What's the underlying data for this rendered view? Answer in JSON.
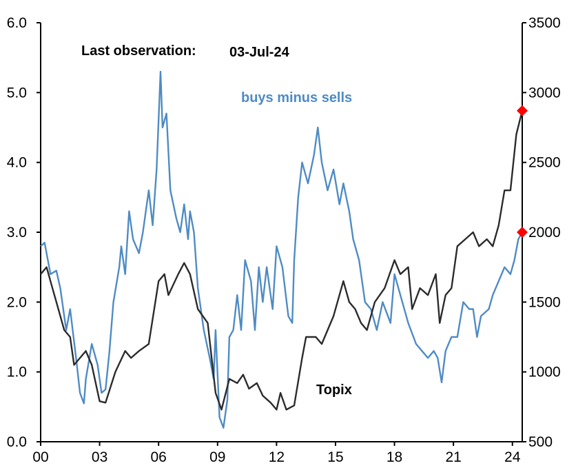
{
  "chart_data": {
    "type": "line",
    "title": "",
    "annotations": {
      "last_observation_label": "Last observation:",
      "last_observation_date": "03-Jul-24"
    },
    "x_axis": {
      "ticks": [
        "00",
        "03",
        "06",
        "09",
        "12",
        "15",
        "18",
        "21",
        "24"
      ],
      "tick_years": [
        2000,
        2003,
        2006,
        2009,
        2012,
        2015,
        2018,
        2021,
        2024
      ],
      "range": [
        2000,
        2024.5
      ]
    },
    "y_left": {
      "range": [
        0,
        6
      ],
      "ticks": [
        "0.0",
        "1.0",
        "2.0",
        "3.0",
        "4.0",
        "5.0",
        "6.0"
      ]
    },
    "y_right": {
      "range": [
        500,
        3500
      ],
      "ticks": [
        "500",
        "1000",
        "1500",
        "2000",
        "2500",
        "3000",
        "3500"
      ]
    },
    "grid": false,
    "legend": "none",
    "series": [
      {
        "name": "buys minus sells",
        "axis": "left",
        "color": "#4F8BC4",
        "x": [
          2000.0,
          2000.2,
          2000.5,
          2000.8,
          2001.0,
          2001.3,
          2001.5,
          2001.8,
          2002.0,
          2002.2,
          2002.3,
          2002.6,
          2002.9,
          2003.1,
          2003.3,
          2003.5,
          2003.7,
          2004.0,
          2004.1,
          2004.3,
          2004.5,
          2004.7,
          2005.0,
          2005.2,
          2005.5,
          2005.7,
          2005.9,
          2006.1,
          2006.2,
          2006.4,
          2006.6,
          2006.9,
          2007.1,
          2007.3,
          2007.5,
          2007.6,
          2007.8,
          2008.0,
          2008.3,
          2008.6,
          2008.8,
          2008.9,
          2009.1,
          2009.3,
          2009.5,
          2009.6,
          2009.8,
          2010.0,
          2010.2,
          2010.4,
          2010.7,
          2010.9,
          2011.1,
          2011.3,
          2011.5,
          2011.8,
          2012.0,
          2012.3,
          2012.6,
          2012.8,
          2012.9,
          2013.1,
          2013.3,
          2013.6,
          2013.9,
          2014.1,
          2014.3,
          2014.6,
          2014.9,
          2015.2,
          2015.4,
          2015.7,
          2015.9,
          2016.2,
          2016.5,
          2016.8,
          2017.1,
          2017.4,
          2017.8,
          2018.0,
          2018.3,
          2018.7,
          2019.1,
          2019.4,
          2019.7,
          2020.0,
          2020.2,
          2020.4,
          2020.6,
          2020.9,
          2021.2,
          2021.5,
          2021.8,
          2022.0,
          2022.2,
          2022.4,
          2022.8,
          2023.0,
          2023.3,
          2023.6,
          2023.9,
          2024.1,
          2024.3,
          2024.5
        ],
        "y": [
          2.8,
          2.85,
          2.4,
          2.45,
          2.2,
          1.6,
          1.9,
          1.2,
          0.7,
          0.55,
          0.9,
          1.4,
          1.1,
          0.7,
          0.75,
          1.3,
          2.0,
          2.5,
          2.8,
          2.4,
          3.3,
          2.9,
          2.7,
          3.0,
          3.6,
          3.1,
          3.9,
          5.3,
          4.5,
          4.7,
          3.6,
          3.2,
          3.0,
          3.4,
          2.9,
          3.3,
          3.0,
          2.2,
          1.6,
          1.2,
          0.9,
          1.6,
          0.35,
          0.2,
          0.6,
          1.5,
          1.6,
          2.1,
          1.6,
          2.6,
          2.3,
          1.6,
          2.5,
          2.0,
          2.5,
          1.9,
          2.8,
          2.5,
          1.8,
          1.7,
          2.6,
          3.5,
          4.0,
          3.7,
          4.1,
          4.5,
          4.0,
          3.6,
          3.9,
          3.4,
          3.7,
          3.3,
          2.9,
          2.6,
          2.0,
          1.9,
          1.6,
          2.0,
          1.7,
          2.4,
          2.1,
          1.7,
          1.4,
          1.3,
          1.2,
          1.3,
          1.2,
          0.85,
          1.3,
          1.5,
          1.5,
          2.0,
          1.9,
          1.9,
          1.5,
          1.8,
          1.9,
          2.1,
          2.3,
          2.5,
          2.4,
          2.6,
          2.9,
          3.0
        ],
        "last_value": 3.0
      },
      {
        "name": "Topix",
        "axis": "right",
        "color": "#2B2B2B",
        "x": [
          2000.0,
          2000.3,
          2000.6,
          2000.9,
          2001.2,
          2001.5,
          2001.7,
          2002.0,
          2002.3,
          2002.6,
          2003.0,
          2003.3,
          2003.8,
          2004.3,
          2004.6,
          2005.0,
          2005.5,
          2006.0,
          2006.3,
          2006.5,
          2007.0,
          2007.3,
          2007.6,
          2008.0,
          2008.5,
          2008.9,
          2009.2,
          2009.6,
          2010.0,
          2010.3,
          2010.6,
          2011.0,
          2011.3,
          2011.7,
          2012.0,
          2012.2,
          2012.5,
          2012.9,
          2013.3,
          2013.5,
          2014.0,
          2014.3,
          2014.9,
          2015.4,
          2015.7,
          2016.0,
          2016.3,
          2016.6,
          2017.0,
          2017.5,
          2018.0,
          2018.3,
          2018.7,
          2018.9,
          2019.3,
          2019.7,
          2020.1,
          2020.3,
          2020.6,
          2020.9,
          2021.2,
          2021.6,
          2022.0,
          2022.3,
          2022.7,
          2023.0,
          2023.3,
          2023.6,
          2023.9,
          2024.2,
          2024.5
        ],
        "y": [
          1700,
          1750,
          1600,
          1450,
          1300,
          1250,
          1050,
          1100,
          1150,
          1050,
          790,
          780,
          1000,
          1150,
          1100,
          1150,
          1200,
          1650,
          1700,
          1550,
          1700,
          1780,
          1700,
          1450,
          1350,
          850,
          730,
          950,
          920,
          980,
          880,
          920,
          830,
          780,
          730,
          850,
          730,
          760,
          1100,
          1250,
          1250,
          1200,
          1400,
          1650,
          1500,
          1450,
          1350,
          1300,
          1500,
          1600,
          1800,
          1700,
          1750,
          1450,
          1600,
          1550,
          1700,
          1350,
          1550,
          1600,
          1900,
          1950,
          2000,
          1900,
          1950,
          1900,
          2050,
          2300,
          2300,
          2700,
          2870
        ],
        "last_value": 2870
      }
    ],
    "series_labels": {
      "buys": "buys minus sells",
      "topix": "Topix"
    },
    "marker_color": "#FF0000"
  }
}
